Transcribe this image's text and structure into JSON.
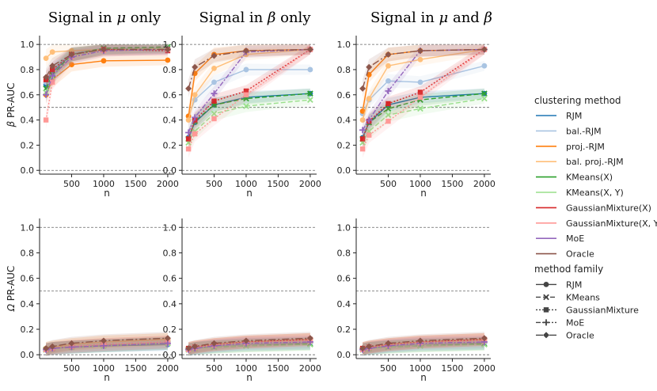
{
  "chart_data": {
    "type": "line",
    "x_label": "n",
    "ylim": [
      0,
      1
    ],
    "x_ticks": [
      "500",
      "1000",
      "1500",
      "2000"
    ],
    "y_ticks": [
      "0.0",
      "0.2",
      "0.4",
      "0.6",
      "0.8",
      "1.0"
    ],
    "reference_lines_y": [
      0.5,
      1.0
    ],
    "column_titles": [
      {
        "pre": "Signal in ",
        "sym": "μ",
        "mid": " only",
        "sym2": "",
        "post": ""
      },
      {
        "pre": "Signal in ",
        "sym": "β",
        "mid": " only",
        "sym2": "",
        "post": ""
      },
      {
        "pre": "Signal in ",
        "sym": "μ",
        "mid": " and ",
        "sym2": "β",
        "post": ""
      }
    ],
    "row_labels": [
      {
        "sym": "β",
        "text": " PR-AUC"
      },
      {
        "sym": "Ω",
        "text": " PR-AUC"
      }
    ],
    "x": [
      100,
      200,
      500,
      1000,
      2000
    ],
    "legend_title_color": "clustering method",
    "legend_title_family": "method family",
    "methods": [
      {
        "name": "RJM",
        "color": "#1f77b4",
        "family": "RJM"
      },
      {
        "name": "bal.-RJM",
        "color": "#a9c4e2",
        "family": "RJM"
      },
      {
        "name": "proj.-RJM",
        "color": "#ff7f0e",
        "family": "RJM"
      },
      {
        "name": "bal. proj.-RJM",
        "color": "#ffbf79",
        "family": "RJM"
      },
      {
        "name": "KMeans(X)",
        "color": "#2ca02c",
        "family": "KMeans"
      },
      {
        "name": "KMeans(X, Y)",
        "color": "#98df8a",
        "family": "KMeans"
      },
      {
        "name": "GaussianMixture(X)",
        "color": "#d62728",
        "family": "GaussianMixture"
      },
      {
        "name": "GaussianMixture(X, Y)",
        "color": "#ff9896",
        "family": "GaussianMixture"
      },
      {
        "name": "MoE",
        "color": "#9467bd",
        "family": "MoE"
      },
      {
        "name": "Oracle",
        "color": "#8c564b",
        "family": "Oracle"
      }
    ],
    "families": [
      {
        "name": "RJM",
        "dash": "",
        "marker": "circle"
      },
      {
        "name": "KMeans",
        "dash": "6,3",
        "marker": "x"
      },
      {
        "name": "GaussianMixture",
        "dash": "2,2",
        "marker": "square"
      },
      {
        "name": "MoE",
        "dash": "6,2,2,2",
        "marker": "plus"
      },
      {
        "name": "Oracle",
        "dash": "9,3,2,3",
        "marker": "diamond"
      }
    ],
    "panels": [
      {
        "row": 0,
        "col": 0,
        "series": {
          "RJM": [
            0.68,
            0.78,
            0.92,
            0.97,
            0.97
          ],
          "bal.-RJM": [
            0.7,
            0.8,
            0.93,
            0.97,
            0.97
          ],
          "proj.-RJM": [
            0.6,
            0.72,
            0.84,
            0.87,
            0.875
          ],
          "bal. proj.-RJM": [
            0.89,
            0.94,
            0.95,
            0.96,
            0.965
          ],
          "KMeans(X)": [
            0.65,
            0.76,
            0.92,
            0.97,
            0.98
          ],
          "KMeans(X, Y)": [
            0.62,
            0.74,
            0.91,
            0.96,
            0.97
          ],
          "GaussianMixture(X)": [
            0.72,
            0.8,
            0.92,
            0.96,
            0.95
          ],
          "GaussianMixture(X, Y)": [
            0.4,
            0.7,
            0.9,
            0.95,
            0.96
          ],
          "MoE": [
            0.6,
            0.75,
            0.9,
            0.95,
            0.96
          ],
          "Oracle": [
            0.74,
            0.83,
            0.92,
            0.96,
            0.96
          ]
        }
      },
      {
        "row": 0,
        "col": 1,
        "series": {
          "RJM": [
            0.26,
            0.38,
            0.52,
            0.58,
            0.61
          ],
          "bal.-RJM": [
            0.43,
            0.56,
            0.7,
            0.8,
            0.8
          ],
          "proj.-RJM": [
            0.43,
            0.77,
            0.92,
            0.95,
            0.96
          ],
          "bal. proj.-RJM": [
            0.4,
            0.6,
            0.81,
            0.92,
            0.96
          ],
          "KMeans(X)": [
            0.25,
            0.39,
            0.52,
            0.57,
            0.61
          ],
          "KMeans(X, Y)": [
            0.22,
            0.31,
            0.45,
            0.51,
            0.56
          ],
          "GaussianMixture(X)": [
            0.25,
            0.4,
            0.55,
            0.63,
            0.96
          ],
          "GaussianMixture(X, Y)": [
            0.17,
            0.29,
            0.41,
            0.6,
            0.96
          ],
          "MoE": [
            0.3,
            0.42,
            0.61,
            0.94,
            0.96
          ],
          "Oracle": [
            0.65,
            0.82,
            0.91,
            0.95,
            0.96
          ]
        }
      },
      {
        "row": 0,
        "col": 2,
        "series": {
          "RJM": [
            0.26,
            0.38,
            0.52,
            0.58,
            0.61
          ],
          "bal.-RJM": [
            0.45,
            0.56,
            0.71,
            0.7,
            0.83
          ],
          "proj.-RJM": [
            0.47,
            0.76,
            0.92,
            0.95,
            0.96
          ],
          "bal. proj.-RJM": [
            0.4,
            0.57,
            0.83,
            0.88,
            0.96
          ],
          "KMeans(X)": [
            0.25,
            0.38,
            0.49,
            0.56,
            0.61
          ],
          "KMeans(X, Y)": [
            0.22,
            0.31,
            0.44,
            0.49,
            0.57
          ],
          "GaussianMixture(X)": [
            0.25,
            0.39,
            0.53,
            0.62,
            0.96
          ],
          "GaussianMixture(X, Y)": [
            0.17,
            0.28,
            0.39,
            0.58,
            0.96
          ],
          "MoE": [
            0.32,
            0.4,
            0.63,
            0.95,
            0.96
          ],
          "Oracle": [
            0.65,
            0.82,
            0.92,
            0.95,
            0.96
          ]
        }
      },
      {
        "row": 1,
        "col": 0,
        "series": {
          "RJM": [
            0.04,
            0.05,
            0.06,
            0.07,
            0.08
          ],
          "bal.-RJM": [
            0.04,
            0.05,
            0.06,
            0.075,
            0.085
          ],
          "proj.-RJM": [
            0.05,
            0.06,
            0.08,
            0.1,
            0.12
          ],
          "bal. proj.-RJM": [
            0.05,
            0.06,
            0.08,
            0.1,
            0.12
          ],
          "KMeans(X)": [
            0.04,
            0.05,
            0.06,
            0.07,
            0.09
          ],
          "KMeans(X, Y)": [
            0.04,
            0.05,
            0.06,
            0.07,
            0.09
          ],
          "GaussianMixture(X)": [
            0.04,
            0.05,
            0.065,
            0.08,
            0.1
          ],
          "GaussianMixture(X, Y)": [
            0.04,
            0.05,
            0.065,
            0.08,
            0.1
          ],
          "MoE": [
            0.04,
            0.05,
            0.06,
            0.07,
            0.09
          ],
          "Oracle": [
            0.05,
            0.065,
            0.09,
            0.11,
            0.13
          ]
        }
      },
      {
        "row": 1,
        "col": 1,
        "series": {
          "RJM": [
            0.04,
            0.05,
            0.065,
            0.08,
            0.09
          ],
          "bal.-RJM": [
            0.04,
            0.05,
            0.065,
            0.08,
            0.09
          ],
          "proj.-RJM": [
            0.05,
            0.06,
            0.08,
            0.1,
            0.12
          ],
          "bal. proj.-RJM": [
            0.05,
            0.06,
            0.08,
            0.1,
            0.12
          ],
          "KMeans(X)": [
            0.04,
            0.05,
            0.06,
            0.07,
            0.085
          ],
          "KMeans(X, Y)": [
            0.04,
            0.05,
            0.06,
            0.07,
            0.08
          ],
          "GaussianMixture(X)": [
            0.05,
            0.06,
            0.08,
            0.1,
            0.12
          ],
          "GaussianMixture(X, Y)": [
            0.04,
            0.055,
            0.075,
            0.095,
            0.11
          ],
          "MoE": [
            0.04,
            0.05,
            0.07,
            0.09,
            0.1
          ],
          "Oracle": [
            0.05,
            0.065,
            0.09,
            0.11,
            0.13
          ]
        }
      },
      {
        "row": 1,
        "col": 2,
        "series": {
          "RJM": [
            0.04,
            0.05,
            0.065,
            0.08,
            0.09
          ],
          "bal.-RJM": [
            0.04,
            0.05,
            0.065,
            0.08,
            0.09
          ],
          "proj.-RJM": [
            0.05,
            0.06,
            0.08,
            0.1,
            0.12
          ],
          "bal. proj.-RJM": [
            0.05,
            0.06,
            0.08,
            0.1,
            0.12
          ],
          "KMeans(X)": [
            0.04,
            0.05,
            0.06,
            0.07,
            0.085
          ],
          "KMeans(X, Y)": [
            0.04,
            0.05,
            0.06,
            0.07,
            0.08
          ],
          "GaussianMixture(X)": [
            0.05,
            0.06,
            0.08,
            0.1,
            0.12
          ],
          "GaussianMixture(X, Y)": [
            0.04,
            0.055,
            0.075,
            0.095,
            0.11
          ],
          "MoE": [
            0.04,
            0.05,
            0.07,
            0.09,
            0.1
          ],
          "Oracle": [
            0.05,
            0.065,
            0.09,
            0.11,
            0.13
          ]
        }
      }
    ]
  }
}
